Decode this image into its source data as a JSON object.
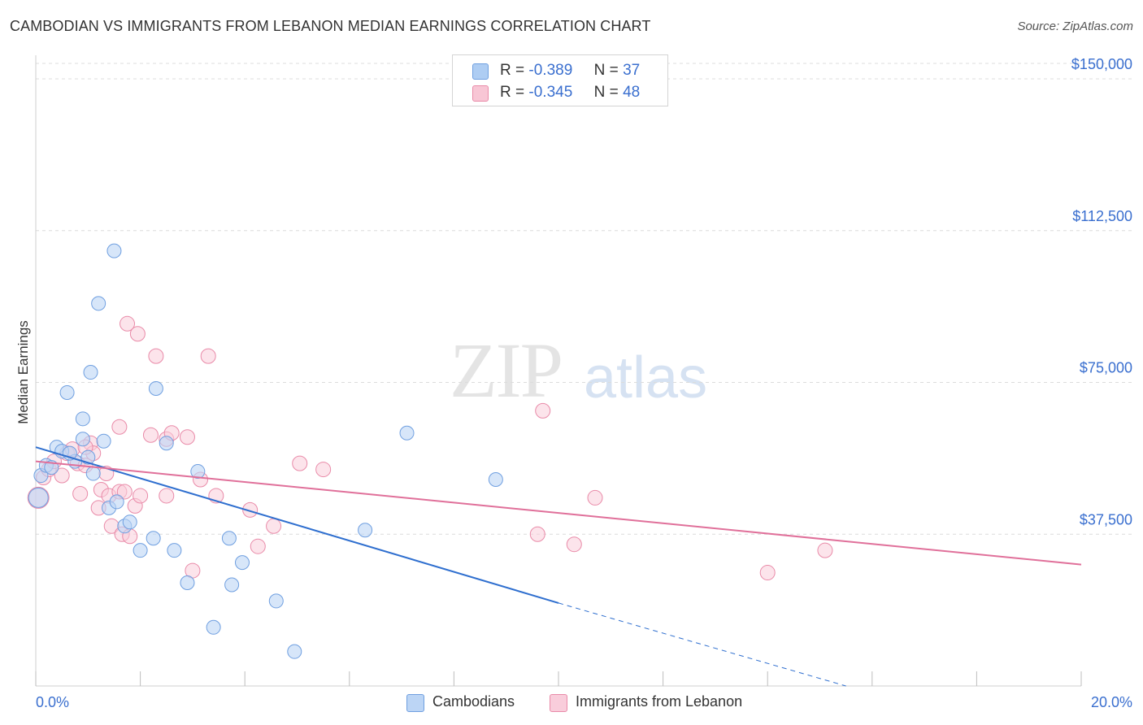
{
  "header": {
    "title": "CAMBODIAN VS IMMIGRANTS FROM LEBANON MEDIAN EARNINGS CORRELATION CHART",
    "source": "Source: ZipAtlas.com"
  },
  "watermark": {
    "part1": "ZIP",
    "part2": "atlas"
  },
  "legend_top": [
    {
      "r_label": "R =",
      "r_value": "-0.389",
      "n_label": "N =",
      "n_value": "37",
      "color": "#aecdf3",
      "border": "#6f9fe0"
    },
    {
      "r_label": "R =",
      "r_value": "-0.345",
      "n_label": "N =",
      "n_value": "48",
      "color": "#f8c6d5",
      "border": "#e98aa8"
    }
  ],
  "legend_bottom": [
    {
      "label": "Cambodians",
      "color": "#bcd5f5",
      "border": "#6f9fe0"
    },
    {
      "label": "Immigrants from Lebanon",
      "color": "#f9cddb",
      "border": "#e98aa8"
    }
  ],
  "colors": {
    "blue_line": "#2f6fcf",
    "pink_line": "#e0709a",
    "axis_text": "#3a6fcf",
    "grid": "#dcdcdc"
  },
  "chart_data": {
    "type": "scatter",
    "title": "CAMBODIAN VS IMMIGRANTS FROM LEBANON MEDIAN EARNINGS CORRELATION CHART",
    "xlabel": "",
    "ylabel": "Median Earnings",
    "xlim": [
      0,
      20
    ],
    "ylim": [
      0,
      155000
    ],
    "x_tick_labels": [
      "0.0%",
      "20.0%"
    ],
    "y_ticks": [
      37500,
      75000,
      112500,
      150000
    ],
    "y_tick_labels": [
      "$37,500",
      "$75,000",
      "$112,500",
      "$150,000"
    ],
    "grid": true,
    "legend_position": "top-center",
    "series": [
      {
        "name": "Cambodians",
        "regression": {
          "x_start": 0,
          "y_start": 59000,
          "x_solid_end": 10,
          "y_solid_end": 20500,
          "x_dash_end": 15.5,
          "y_dash_end": 0
        },
        "points": [
          [
            0.1,
            52000
          ],
          [
            0.2,
            54500
          ],
          [
            0.4,
            59000
          ],
          [
            0.5,
            58000
          ],
          [
            0.6,
            72500
          ],
          [
            0.75,
            55500
          ],
          [
            0.9,
            61000
          ],
          [
            0.9,
            66000
          ],
          [
            1.05,
            77500
          ],
          [
            1.1,
            52500
          ],
          [
            1.3,
            60500
          ],
          [
            1.5,
            107500
          ],
          [
            1.2,
            94500
          ],
          [
            1.4,
            44000
          ],
          [
            1.55,
            45500
          ],
          [
            1.7,
            39500
          ],
          [
            1.8,
            40500
          ],
          [
            2.0,
            33500
          ],
          [
            2.25,
            36500
          ],
          [
            2.3,
            73500
          ],
          [
            2.5,
            60000
          ],
          [
            2.65,
            33500
          ],
          [
            2.9,
            25500
          ],
          [
            3.1,
            53000
          ],
          [
            3.4,
            14500
          ],
          [
            3.7,
            36500
          ],
          [
            3.75,
            25000
          ],
          [
            3.95,
            30500
          ],
          [
            4.6,
            21000
          ],
          [
            4.95,
            8500
          ],
          [
            6.3,
            38500
          ],
          [
            7.1,
            62500
          ],
          [
            8.8,
            51000
          ],
          [
            0.05,
            46500
          ],
          [
            0.3,
            54000
          ],
          [
            0.65,
            57500
          ],
          [
            1.0,
            56500
          ]
        ]
      },
      {
        "name": "Immigrants from Lebanon",
        "regression": {
          "x_start": 0,
          "y_start": 55500,
          "x_end": 20,
          "y_end": 30000
        },
        "points": [
          [
            0.05,
            46500
          ],
          [
            0.15,
            51500
          ],
          [
            0.25,
            53500
          ],
          [
            0.35,
            55500
          ],
          [
            0.5,
            52000
          ],
          [
            0.6,
            57500
          ],
          [
            0.7,
            58500
          ],
          [
            0.8,
            55000
          ],
          [
            0.85,
            47500
          ],
          [
            0.95,
            54500
          ],
          [
            1.05,
            60000
          ],
          [
            1.1,
            57500
          ],
          [
            1.2,
            44000
          ],
          [
            1.25,
            48500
          ],
          [
            1.35,
            52500
          ],
          [
            1.4,
            47000
          ],
          [
            1.45,
            39500
          ],
          [
            1.6,
            48000
          ],
          [
            1.6,
            64000
          ],
          [
            1.65,
            37500
          ],
          [
            1.7,
            48000
          ],
          [
            1.75,
            89500
          ],
          [
            1.8,
            37000
          ],
          [
            1.9,
            44500
          ],
          [
            1.95,
            87000
          ],
          [
            2.0,
            47000
          ],
          [
            2.2,
            62000
          ],
          [
            2.3,
            81500
          ],
          [
            2.5,
            61000
          ],
          [
            2.5,
            47000
          ],
          [
            2.6,
            62500
          ],
          [
            2.9,
            61500
          ],
          [
            3.0,
            28500
          ],
          [
            3.15,
            51000
          ],
          [
            3.3,
            81500
          ],
          [
            3.45,
            47000
          ],
          [
            4.1,
            43500
          ],
          [
            4.25,
            34500
          ],
          [
            4.55,
            39500
          ],
          [
            5.05,
            55000
          ],
          [
            5.5,
            53500
          ],
          [
            9.7,
            68000
          ],
          [
            9.6,
            37500
          ],
          [
            10.3,
            35000
          ],
          [
            10.7,
            46500
          ],
          [
            14.0,
            28000
          ],
          [
            15.1,
            33500
          ],
          [
            0.95,
            59000
          ]
        ]
      }
    ]
  }
}
